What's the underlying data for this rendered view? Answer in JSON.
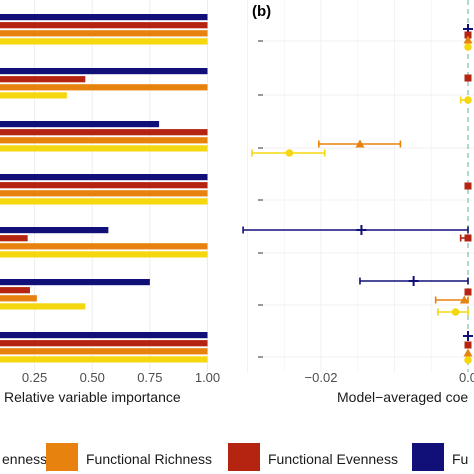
{
  "colors": {
    "navy": "#101078",
    "red": "#b52410",
    "orange": "#e8820f",
    "yellow": "#f5d70f",
    "zero_line": "#8fc9b4"
  },
  "legend": {
    "items": [
      {
        "label": "enness",
        "color": "#f5d70f"
      },
      {
        "label": "Functional Richness",
        "color": "#e8820f"
      },
      {
        "label": "Functional Evenness",
        "color": "#b52410"
      },
      {
        "label": "Fu",
        "color": "#101078"
      }
    ]
  },
  "chart_data": [
    {
      "type": "bar",
      "orientation": "horizontal",
      "title": "",
      "xlabel": "Relative variable importance",
      "xlim": [
        0.1,
        1.0
      ],
      "xticks": [
        "0.25",
        "0.50",
        "0.75",
        "1.00"
      ],
      "series_order": [
        "navy",
        "red",
        "orange",
        "yellow"
      ],
      "groups": [
        {
          "navy": 1.0,
          "red": 1.0,
          "orange": 1.0,
          "yellow": 1.0
        },
        {
          "navy": 1.0,
          "red": 0.47,
          "orange": 1.0,
          "yellow": 0.39
        },
        {
          "navy": 0.79,
          "red": 1.0,
          "orange": 1.0,
          "yellow": 1.0
        },
        {
          "navy": 1.0,
          "red": 1.0,
          "orange": 1.0,
          "yellow": 1.0
        },
        {
          "navy": 0.57,
          "red": 0.22,
          "orange": 1.0,
          "yellow": 1.0
        },
        {
          "navy": 0.75,
          "red": 0.23,
          "orange": 0.26,
          "yellow": 0.47
        },
        {
          "navy": 1.0,
          "red": 1.0,
          "orange": 1.0,
          "yellow": 1.0
        }
      ]
    },
    {
      "type": "scatter",
      "panel_label": "(b)",
      "xlabel": "Model−averaged coe",
      "xlim": [
        -0.032,
        0.001
      ],
      "xticks": [
        {
          "value": -0.02,
          "label": "−0.02"
        },
        {
          "value": 0.0,
          "label": "0.0"
        }
      ],
      "reference_line": 0,
      "groups": [
        {
          "points": [
            {
              "series": "navy",
              "shape": "plus",
              "est": 0.0,
              "lo": 0.0,
              "hi": 0.0
            },
            {
              "series": "red",
              "shape": "square",
              "est": 0.0,
              "lo": 0.0,
              "hi": 0.0
            },
            {
              "series": "orange",
              "shape": "triangle",
              "est": 0.0,
              "lo": 0.0,
              "hi": 0.0
            },
            {
              "series": "yellow",
              "shape": "circle",
              "est": 0.0,
              "lo": 0.0,
              "hi": 0.0
            }
          ]
        },
        {
          "points": [
            {
              "series": "red",
              "shape": "square",
              "est": 0.0,
              "lo": 0.0,
              "hi": 0.0
            },
            {
              "series": "yellow",
              "shape": "circle",
              "est": 0.0,
              "lo": -0.001,
              "hi": 0.0
            }
          ]
        },
        {
          "points": [
            {
              "series": "orange",
              "shape": "triangle",
              "est": -0.0147,
              "lo": -0.0203,
              "hi": -0.0092
            },
            {
              "series": "yellow",
              "shape": "circle",
              "est": -0.0243,
              "lo": -0.0294,
              "hi": -0.0195
            }
          ]
        },
        {
          "points": [
            {
              "series": "red",
              "shape": "square",
              "est": 0.0,
              "lo": 0.0,
              "hi": 0.0
            }
          ]
        },
        {
          "points": [
            {
              "series": "navy",
              "shape": "plus",
              "est": -0.0145,
              "lo": -0.0306,
              "hi": 0.0
            },
            {
              "series": "red",
              "shape": "square",
              "est": 0.0,
              "lo": -0.001,
              "hi": 0.0
            }
          ]
        },
        {
          "points": [
            {
              "series": "navy",
              "shape": "plus",
              "est": -0.0074,
              "lo": -0.0147,
              "hi": 0.0
            },
            {
              "series": "red",
              "shape": "square",
              "est": 0.0,
              "lo": 0.0,
              "hi": 0.0
            },
            {
              "series": "orange",
              "shape": "triangle",
              "est": -0.0005,
              "lo": -0.0044,
              "hi": 0.0
            },
            {
              "series": "yellow",
              "shape": "circle",
              "est": -0.0017,
              "lo": -0.0041,
              "hi": 0.0
            }
          ]
        },
        {
          "points": [
            {
              "series": "navy",
              "shape": "plus",
              "est": 0.0,
              "lo": 0.0,
              "hi": 0.0
            },
            {
              "series": "red",
              "shape": "square",
              "est": 0.0,
              "lo": 0.0,
              "hi": 0.0
            },
            {
              "series": "orange",
              "shape": "triangle",
              "est": 0.0,
              "lo": 0.0,
              "hi": 0.0
            },
            {
              "series": "yellow",
              "shape": "circle",
              "est": 0.0,
              "lo": 0.0,
              "hi": 0.0
            }
          ]
        }
      ]
    }
  ]
}
